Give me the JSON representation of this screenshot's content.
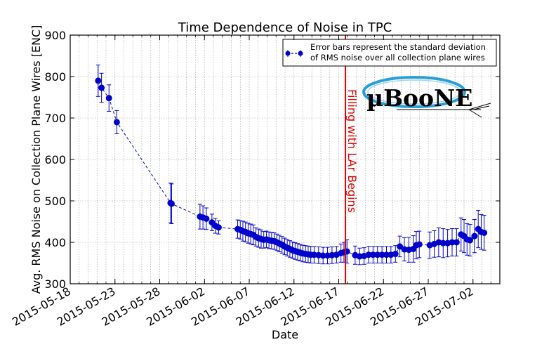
{
  "chart_data": {
    "type": "scatter",
    "title": "Time Dependence of Noise in TPC",
    "xlabel": "Date",
    "ylabel": "Avg. RMS Noise on Collection Plane Wires [ENC]",
    "xlim": [
      "2015-05-18",
      "2015-07-05"
    ],
    "ylim": [
      300,
      900
    ],
    "grid": true,
    "x_ticks": [
      "2015-05-18",
      "2015-05-23",
      "2015-05-28",
      "2015-06-02",
      "2015-06-07",
      "2015-06-12",
      "2015-06-17",
      "2015-06-22",
      "2015-06-27",
      "2015-07-02"
    ],
    "y_ticks": [
      300,
      400,
      500,
      600,
      700,
      800,
      900
    ],
    "legend": {
      "position": "top-right",
      "text_line1": "Error bars represent the standard deviation",
      "text_line2": "of RMS noise over all collection plane wires"
    },
    "marker_color": "#0000cc",
    "annotation": {
      "date": "2015-06-17 18:00",
      "text": "Filling with LAr Begins",
      "color": "#dd0000"
    },
    "logo_text": "µBooNE",
    "points": [
      {
        "x": "2015-05-21 03:00",
        "y": 790,
        "err": 38
      },
      {
        "x": "2015-05-21 12:00",
        "y": 773,
        "err": 35
      },
      {
        "x": "2015-05-22 08:00",
        "y": 748,
        "err": 32
      },
      {
        "x": "2015-05-23 05:00",
        "y": 690,
        "err": 28
      },
      {
        "x": "2015-05-29 05:00",
        "y": 495,
        "err": 48
      },
      {
        "x": "2015-05-29 08:00",
        "y": 493,
        "err": 48
      },
      {
        "x": "2015-06-01 12:00",
        "y": 462,
        "err": 30
      },
      {
        "x": "2015-06-01 20:00",
        "y": 460,
        "err": 28
      },
      {
        "x": "2015-06-02 05:00",
        "y": 457,
        "err": 26
      },
      {
        "x": "2015-06-02 20:00",
        "y": 448,
        "err": 20
      },
      {
        "x": "2015-06-03 05:00",
        "y": 440,
        "err": 18
      },
      {
        "x": "2015-06-03 14:00",
        "y": 436,
        "err": 16
      },
      {
        "x": "2015-06-05 17:00",
        "y": 432,
        "err": 22
      },
      {
        "x": "2015-06-06 00:00",
        "y": 430,
        "err": 22
      },
      {
        "x": "2015-06-06 07:00",
        "y": 427,
        "err": 24
      },
      {
        "x": "2015-06-06 14:00",
        "y": 425,
        "err": 24
      },
      {
        "x": "2015-06-06 21:00",
        "y": 422,
        "err": 24
      },
      {
        "x": "2015-06-07 04:00",
        "y": 420,
        "err": 24
      },
      {
        "x": "2015-06-07 11:00",
        "y": 418,
        "err": 24
      },
      {
        "x": "2015-06-07 18:00",
        "y": 413,
        "err": 22
      },
      {
        "x": "2015-06-08 01:00",
        "y": 410,
        "err": 22
      },
      {
        "x": "2015-06-08 08:00",
        "y": 408,
        "err": 22
      },
      {
        "x": "2015-06-08 15:00",
        "y": 406,
        "err": 20
      },
      {
        "x": "2015-06-08 22:00",
        "y": 407,
        "err": 20
      },
      {
        "x": "2015-06-09 05:00",
        "y": 405,
        "err": 20
      },
      {
        "x": "2015-06-09 12:00",
        "y": 404,
        "err": 20
      },
      {
        "x": "2015-06-09 19:00",
        "y": 403,
        "err": 20
      },
      {
        "x": "2015-06-10 02:00",
        "y": 400,
        "err": 20
      },
      {
        "x": "2015-06-10 09:00",
        "y": 397,
        "err": 20
      },
      {
        "x": "2015-06-10 16:00",
        "y": 394,
        "err": 20
      },
      {
        "x": "2015-06-10 23:00",
        "y": 390,
        "err": 20
      },
      {
        "x": "2015-06-11 06:00",
        "y": 387,
        "err": 20
      },
      {
        "x": "2015-06-11 13:00",
        "y": 384,
        "err": 20
      },
      {
        "x": "2015-06-11 20:00",
        "y": 381,
        "err": 20
      },
      {
        "x": "2015-06-12 03:00",
        "y": 379,
        "err": 20
      },
      {
        "x": "2015-06-12 10:00",
        "y": 377,
        "err": 20
      },
      {
        "x": "2015-06-12 17:00",
        "y": 375,
        "err": 20
      },
      {
        "x": "2015-06-13 00:00",
        "y": 373,
        "err": 20
      },
      {
        "x": "2015-06-13 07:00",
        "y": 372,
        "err": 20
      },
      {
        "x": "2015-06-13 14:00",
        "y": 371,
        "err": 20
      },
      {
        "x": "2015-06-13 21:00",
        "y": 370,
        "err": 20
      },
      {
        "x": "2015-06-14 06:00",
        "y": 370,
        "err": 20
      },
      {
        "x": "2015-06-14 18:00",
        "y": 369,
        "err": 20
      },
      {
        "x": "2015-06-15 06:00",
        "y": 368,
        "err": 20
      },
      {
        "x": "2015-06-15 18:00",
        "y": 368,
        "err": 20
      },
      {
        "x": "2015-06-16 06:00",
        "y": 369,
        "err": 20
      },
      {
        "x": "2015-06-16 18:00",
        "y": 370,
        "err": 20
      },
      {
        "x": "2015-06-17 06:00",
        "y": 374,
        "err": 22
      },
      {
        "x": "2015-06-17 14:00",
        "y": 376,
        "err": 24
      },
      {
        "x": "2015-06-17 22:00",
        "y": 378,
        "err": 28
      },
      {
        "x": "2015-06-18 20:00",
        "y": 369,
        "err": 22
      },
      {
        "x": "2015-06-19 08:00",
        "y": 366,
        "err": 20
      },
      {
        "x": "2015-06-19 20:00",
        "y": 367,
        "err": 20
      },
      {
        "x": "2015-06-20 08:00",
        "y": 370,
        "err": 20
      },
      {
        "x": "2015-06-20 20:00",
        "y": 370,
        "err": 20
      },
      {
        "x": "2015-06-21 08:00",
        "y": 370,
        "err": 20
      },
      {
        "x": "2015-06-21 20:00",
        "y": 370,
        "err": 20
      },
      {
        "x": "2015-06-22 08:00",
        "y": 370,
        "err": 20
      },
      {
        "x": "2015-06-22 20:00",
        "y": 370,
        "err": 20
      },
      {
        "x": "2015-06-23 08:00",
        "y": 372,
        "err": 20
      },
      {
        "x": "2015-06-23 20:00",
        "y": 390,
        "err": 25
      },
      {
        "x": "2015-06-24 08:00",
        "y": 383,
        "err": 28
      },
      {
        "x": "2015-06-24 20:00",
        "y": 382,
        "err": 30
      },
      {
        "x": "2015-06-25 08:00",
        "y": 384,
        "err": 32
      },
      {
        "x": "2015-06-25 16:00",
        "y": 393,
        "err": 33
      },
      {
        "x": "2015-06-26 00:00",
        "y": 395,
        "err": 32
      },
      {
        "x": "2015-06-27 04:00",
        "y": 393,
        "err": 32
      },
      {
        "x": "2015-06-27 16:00",
        "y": 396,
        "err": 32
      },
      {
        "x": "2015-06-28 04:00",
        "y": 400,
        "err": 35
      },
      {
        "x": "2015-06-28 16:00",
        "y": 398,
        "err": 35
      },
      {
        "x": "2015-06-29 04:00",
        "y": 398,
        "err": 33
      },
      {
        "x": "2015-06-29 16:00",
        "y": 400,
        "err": 33
      },
      {
        "x": "2015-06-30 04:00",
        "y": 400,
        "err": 33
      },
      {
        "x": "2015-06-30 16:00",
        "y": 419,
        "err": 40
      },
      {
        "x": "2015-07-01 00:00",
        "y": 415,
        "err": 40
      },
      {
        "x": "2015-07-01 08:00",
        "y": 407,
        "err": 38
      },
      {
        "x": "2015-07-01 16:00",
        "y": 405,
        "err": 38
      },
      {
        "x": "2015-07-02 04:00",
        "y": 415,
        "err": 40
      },
      {
        "x": "2015-07-02 14:00",
        "y": 432,
        "err": 45
      },
      {
        "x": "2015-07-02 22:00",
        "y": 425,
        "err": 42
      },
      {
        "x": "2015-07-03 06:00",
        "y": 423,
        "err": 42
      }
    ]
  }
}
